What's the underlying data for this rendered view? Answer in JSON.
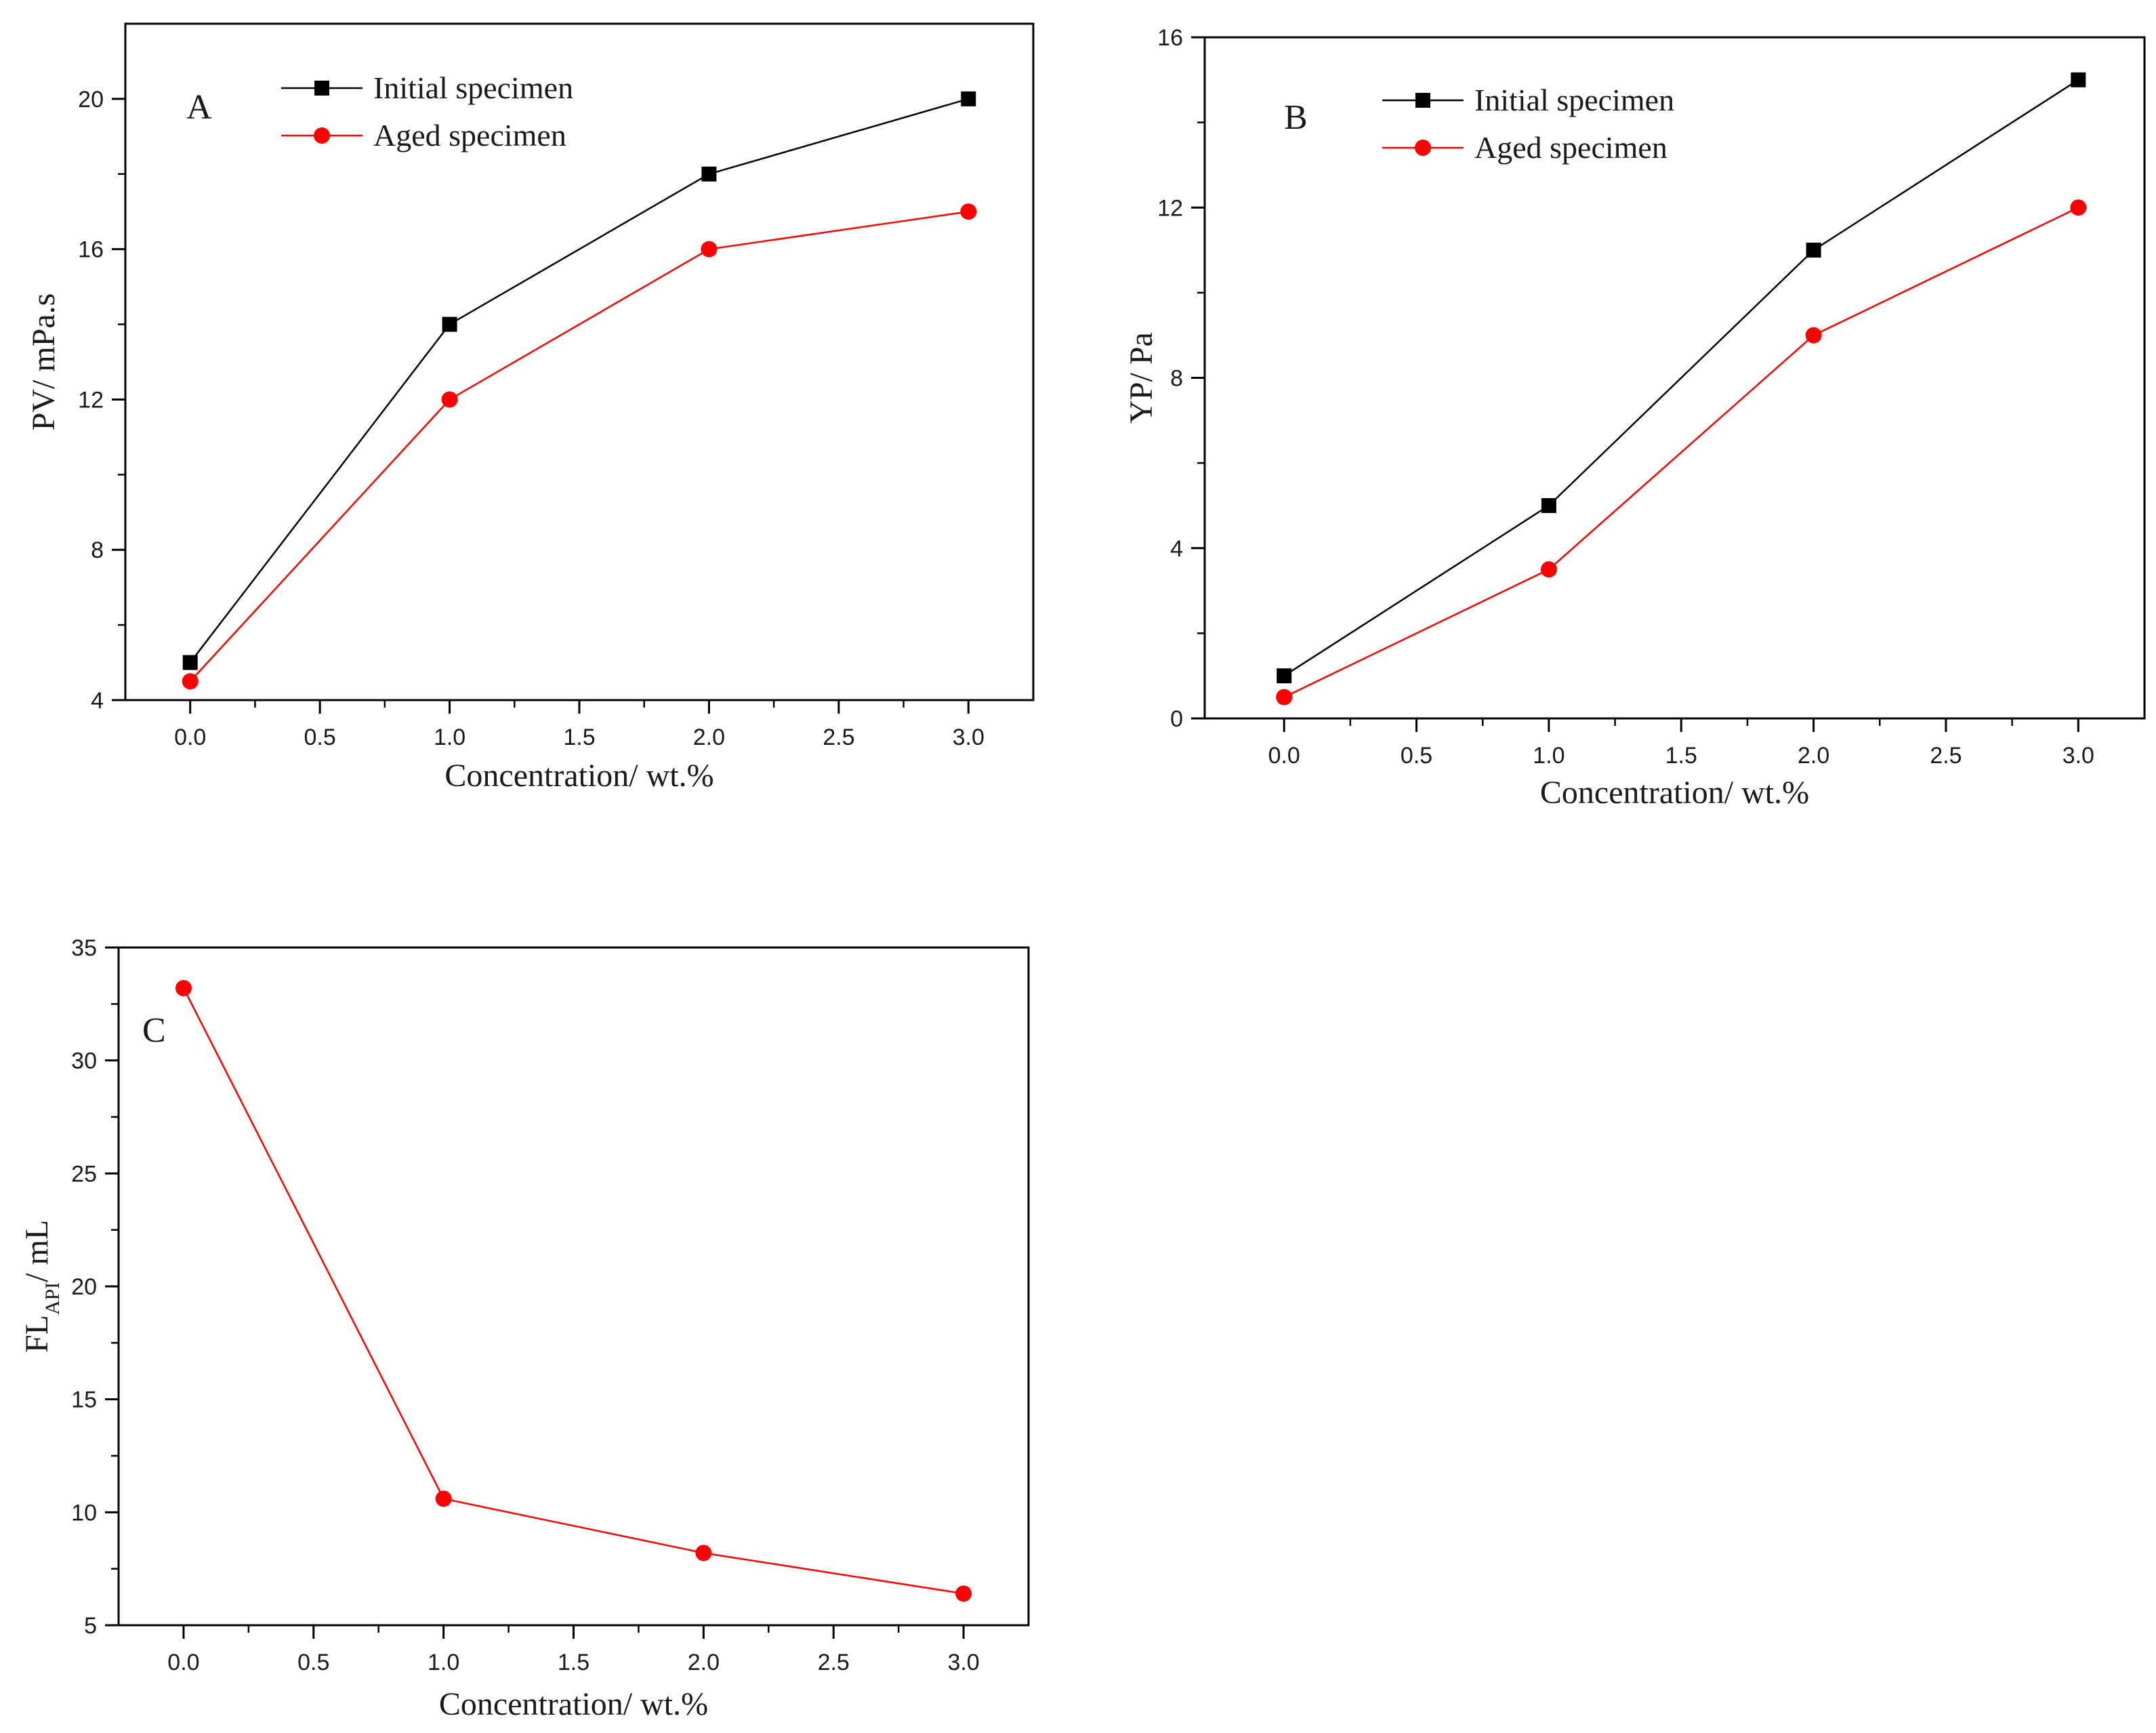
{
  "chart_data": [
    {
      "id": "A",
      "type": "line",
      "panel_label": "A",
      "xlabel": "Concentration/ wt.%",
      "ylabel": "PV/ mPa.s",
      "x": [
        0,
        1,
        2,
        3
      ],
      "xlim": [
        -0.25,
        3.25
      ],
      "ylim": [
        4,
        22
      ],
      "xticks": [
        0,
        0.5,
        1,
        1.5,
        2,
        2.5,
        3
      ],
      "xtick_labels": [
        "0.0",
        "0.5",
        "1.0",
        "1.5",
        "2.0",
        "2.5",
        "3.0"
      ],
      "yticks": [
        4,
        8,
        12,
        16,
        20
      ],
      "ytick_labels": [
        "4",
        "8",
        "12",
        "16",
        "20"
      ],
      "legend_position": "top-left",
      "series": [
        {
          "name": "Initial specimen",
          "color": "#000000",
          "marker": "square",
          "values": [
            5,
            14,
            18,
            20
          ]
        },
        {
          "name": "Aged specimen",
          "color": "#ff0000",
          "marker": "circle",
          "values": [
            4.5,
            12,
            16,
            17
          ]
        }
      ]
    },
    {
      "id": "B",
      "type": "line",
      "panel_label": "B",
      "xlabel": "Concentration/ wt.%",
      "ylabel": "YP/ Pa",
      "x": [
        0,
        1,
        2,
        3
      ],
      "xlim": [
        -0.3,
        3.25
      ],
      "ylim": [
        0,
        16
      ],
      "xticks": [
        0,
        0.5,
        1,
        1.5,
        2,
        2.5,
        3
      ],
      "xtick_labels": [
        "0.0",
        "0.5",
        "1.0",
        "1.5",
        "2.0",
        "2.5",
        "3.0"
      ],
      "yticks": [
        0,
        4,
        8,
        12,
        16
      ],
      "ytick_labels": [
        "0",
        "4",
        "8",
        "12",
        "16"
      ],
      "legend_position": "top-left",
      "series": [
        {
          "name": "Initial specimen",
          "color": "#000000",
          "marker": "square",
          "values": [
            1,
            5,
            11,
            15
          ]
        },
        {
          "name": "Aged specimen",
          "color": "#ff0000",
          "marker": "circle",
          "values": [
            0.5,
            3.5,
            9,
            12
          ]
        }
      ]
    },
    {
      "id": "C",
      "type": "line",
      "panel_label": "C",
      "xlabel": "Concentration/ wt.%",
      "ylabel": "FL",
      "ylabel_subscript": "API",
      "ylabel_suffix": "/ mL",
      "x": [
        0,
        1,
        2,
        3
      ],
      "xlim": [
        -0.25,
        3.25
      ],
      "ylim": [
        5,
        35
      ],
      "xticks": [
        0,
        0.5,
        1,
        1.5,
        2,
        2.5,
        3
      ],
      "xtick_labels": [
        "0.0",
        "0.5",
        "1.0",
        "1.5",
        "2.0",
        "2.5",
        "3.0"
      ],
      "yticks": [
        5,
        10,
        15,
        20,
        25,
        30,
        35
      ],
      "ytick_labels": [
        "5",
        "10",
        "15",
        "20",
        "25",
        "30",
        "35"
      ],
      "series": [
        {
          "name": "Aged specimen",
          "color": "#ff0000",
          "marker": "circle",
          "values": [
            33.2,
            10.6,
            8.2,
            6.4
          ]
        }
      ]
    }
  ]
}
